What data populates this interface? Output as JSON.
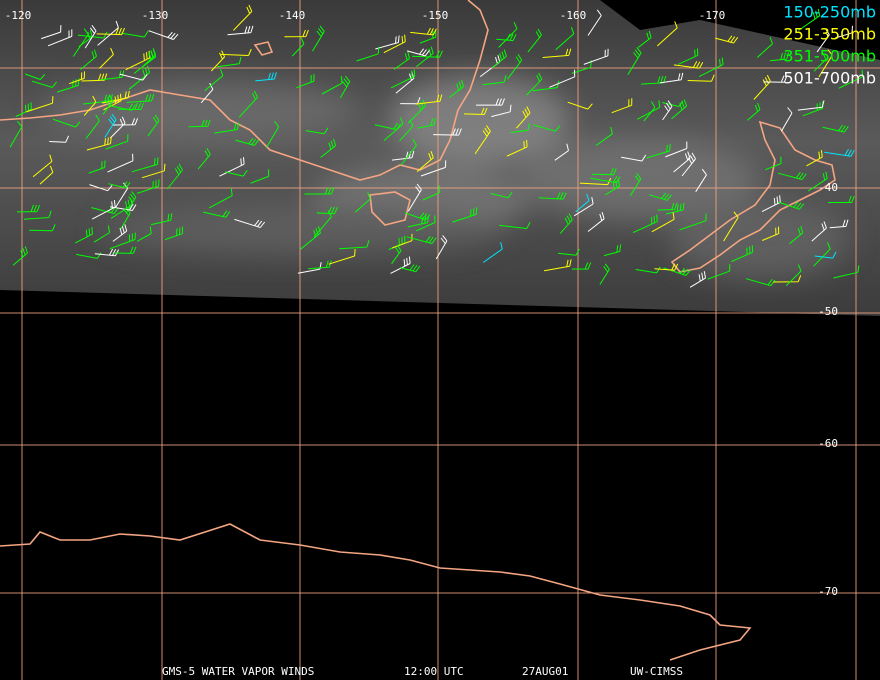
{
  "longitude_labels": [
    "-120",
    "-130",
    "-140",
    "-150",
    "-160",
    "-170"
  ],
  "latitude_labels": [
    "-40",
    "-50",
    "-60",
    "-70"
  ],
  "legend": [
    {
      "label": "150-250mb",
      "color": "#00e5ff"
    },
    {
      "label": "251-350mb",
      "color": "#ffff00"
    },
    {
      "label": "351-500mb",
      "color": "#00ff00"
    },
    {
      "label": "501-700mb",
      "color": "#ffffff"
    }
  ],
  "footer": [
    "GMS-5 WATER VAPOR WINDS",
    "12:00 UTC",
    "27AUG01",
    "UW-CIMSS"
  ]
}
